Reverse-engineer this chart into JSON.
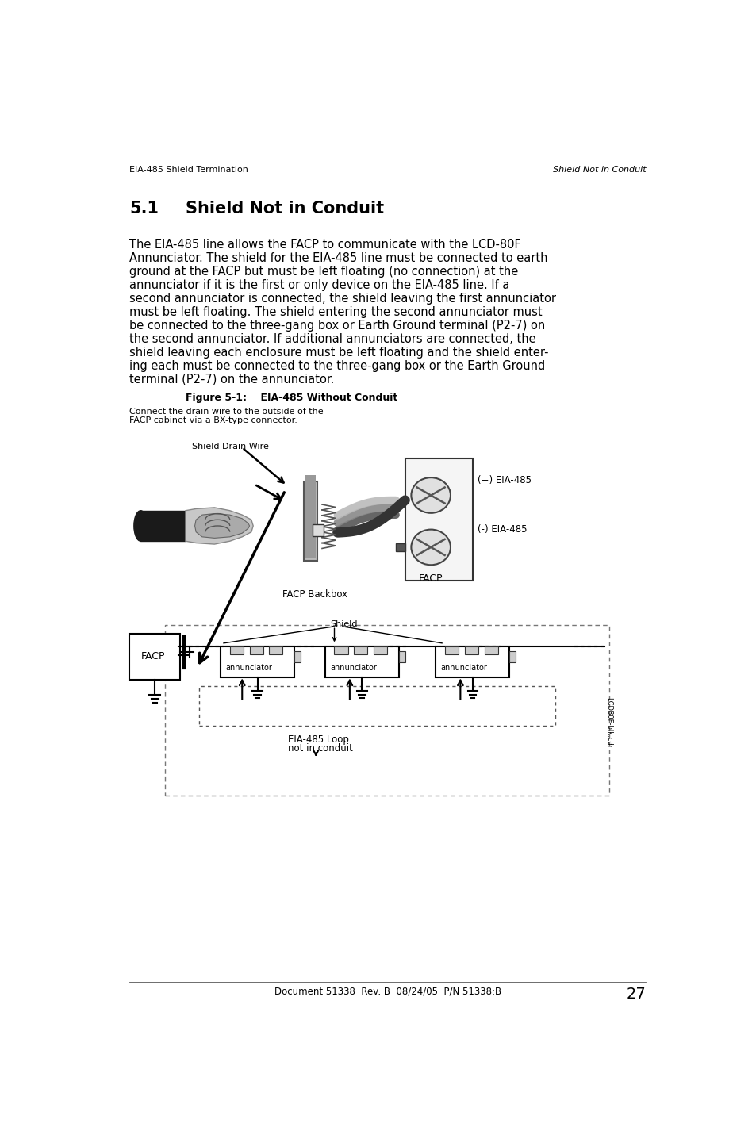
{
  "header_left": "EIA-485 Shield Termination",
  "header_right": "Shield Not in Conduit",
  "section_number": "5.1",
  "section_title": "Shield Not in Conduit",
  "body_text": [
    "The EIA-485 line allows the FACP to communicate with the LCD-80F",
    "Annunciator. The shield for the EIA-485 line must be connected to earth",
    "ground at the FACP but must be left floating (no connection) at the",
    "annunciator if it is the first or only device on the EIA-485 line. If a",
    "second annunciator is connected, the shield leaving the first annunciator",
    "must be left floating. The shield entering the second annunciator must",
    "be connected to the three-gang box or Earth Ground terminal (P2-7) on",
    "the second annunciator. If additional annunciators are connected, the",
    "shield leaving each enclosure must be left floating and the shield enter-",
    "ing each must be connected to the three-gang box or the Earth Ground",
    "terminal (P2-7) on the annunciator."
  ],
  "figure_label": "Figure 5-1:",
  "figure_title": "    EIA-485 Without Conduit",
  "figure_caption_line1": "Connect the drain wire to the outside of the",
  "figure_caption_line2": "FACP cabinet via a BX-type connector.",
  "footer_text": "Document 51338  Rev. B  08/24/05  P/N 51338:B",
  "footer_page": "27",
  "bg_color": "#ffffff",
  "text_color": "#000000"
}
